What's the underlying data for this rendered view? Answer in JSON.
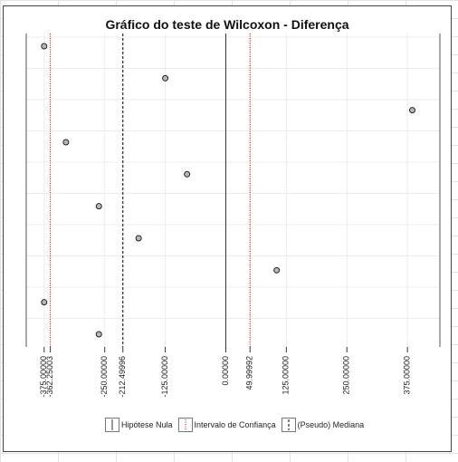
{
  "chart_data": {
    "type": "scatter",
    "title": "Gráfico do teste de Wilcoxon - Diferença",
    "xlabel": "",
    "ylabel": "",
    "xlim": [
      -412,
      442
    ],
    "points": [
      -375,
      -125,
      385,
      -330,
      -80,
      -262,
      -180,
      105,
      -375,
      -262
    ],
    "ticks": [
      {
        "value": -375,
        "label": "-375.00000"
      },
      {
        "value": -362.25,
        "label": "-362.25003"
      },
      {
        "value": -250,
        "label": "-250.00000"
      },
      {
        "value": -212.5,
        "label": "-212.49996"
      },
      {
        "value": -125,
        "label": "-125.00000"
      },
      {
        "value": 0,
        "label": "0.00000"
      },
      {
        "value": 50,
        "label": "49.99992"
      },
      {
        "value": 125,
        "label": "125.00000"
      },
      {
        "value": 250,
        "label": "250.00000"
      },
      {
        "value": 375,
        "label": "375.00000"
      }
    ],
    "null_hypothesis": 0,
    "confidence_interval": [
      -362.25,
      50
    ],
    "pseudo_median": -212.5,
    "grid": true,
    "legend_position": "bottom"
  },
  "legend": {
    "null_label": "Hipótese Nula",
    "ci_label": "Intervalo de Confiança",
    "median_label": "(Pseudo) Mediana"
  },
  "colors": {
    "null_line": "#333333",
    "ci_line": "#cc0000",
    "median_line": "#000000",
    "point_fill": "#b8b8b8"
  }
}
